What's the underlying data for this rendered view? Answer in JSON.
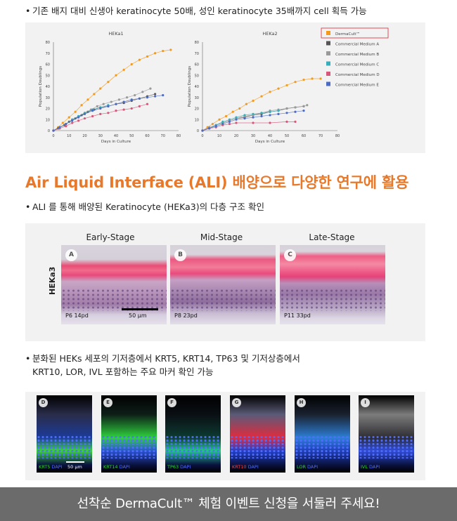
{
  "bullets": {
    "b1": "기존 배지 대비 신생아 keratinocyte 50배, 성인 keratinocyte 35배까지 cell 획득 가능",
    "b2": "ALI 를 통해 배양된 Keratinocyte (HEKa3)의 다층 구조 확인",
    "b3_line1": "분화된 HEKs 세포의 기저층에서 KRT5, KRT14, TP63 및 기저상층에서",
    "b3_line2": "KRT10, LOR, IVL 포함하는 주요 마커 확인 가능",
    "dot": "•"
  },
  "section_title": "Air Liquid Interface (ALI) 배양으로 다양한 연구에 활용",
  "colors": {
    "accent": "#e8792a",
    "legend_highlight": "#d9262f",
    "footer_bg": "#6b6b6b"
  },
  "chart_data": [
    {
      "type": "line",
      "title": "HEKa1",
      "xlabel": "Days in Culture",
      "ylabel": "Population Doublings",
      "xlim": [
        0,
        80
      ],
      "ylim": [
        0,
        80
      ],
      "xticks": [
        0,
        10,
        20,
        30,
        40,
        50,
        60,
        70,
        80
      ],
      "yticks": [
        0,
        10,
        20,
        30,
        40,
        50,
        60,
        70,
        80
      ],
      "series": [
        {
          "name": "DermaCult™",
          "color": "#f39a1c",
          "x": [
            0,
            3,
            6,
            10,
            14,
            18,
            22,
            26,
            30,
            35,
            40,
            45,
            50,
            55,
            60,
            65,
            70,
            75
          ],
          "y": [
            0,
            3,
            7,
            12,
            17,
            23,
            28,
            33,
            38,
            44,
            50,
            55,
            60,
            64,
            67,
            70,
            72,
            73
          ]
        },
        {
          "name": "Commercial Medium A",
          "color": "#555555",
          "x": [
            0,
            3,
            7,
            10,
            14,
            18,
            22,
            26,
            30,
            35,
            40,
            45,
            50,
            55,
            60,
            65
          ],
          "y": [
            0,
            2,
            5,
            8,
            11,
            14,
            17,
            19,
            21,
            22,
            24,
            25,
            27,
            29,
            31,
            33
          ]
        },
        {
          "name": "Commercial Medium B",
          "color": "#9a9a9a",
          "x": [
            0,
            4,
            8,
            12,
            16,
            20,
            24,
            28,
            32,
            37,
            42,
            47,
            52,
            57,
            62
          ],
          "y": [
            0,
            3,
            6,
            10,
            13,
            16,
            19,
            22,
            24,
            26,
            28,
            30,
            32,
            35,
            38
          ]
        },
        {
          "name": "Commercial Medium C",
          "color": "#39aeb8",
          "x": [
            0,
            4,
            8,
            12,
            16,
            20,
            25,
            30,
            35
          ],
          "y": [
            0,
            3,
            6,
            10,
            13,
            16,
            19,
            21,
            23
          ]
        },
        {
          "name": "Commercial Medium D",
          "color": "#d6577a",
          "x": [
            0,
            4,
            8,
            12,
            16,
            20,
            25,
            30,
            35,
            40,
            45,
            50,
            55,
            60
          ],
          "y": [
            0,
            2,
            4,
            7,
            9,
            11,
            13,
            15,
            16,
            18,
            19,
            20,
            22,
            24
          ]
        },
        {
          "name": "Commercial Medium E",
          "color": "#4c6bc4",
          "x": [
            0,
            4,
            8,
            12,
            16,
            20,
            25,
            30,
            35,
            40,
            45,
            50,
            55,
            60,
            65,
            70
          ],
          "y": [
            0,
            3,
            6,
            9,
            12,
            15,
            18,
            20,
            22,
            24,
            26,
            28,
            29,
            30,
            31,
            32
          ]
        }
      ]
    },
    {
      "type": "line",
      "title": "HEKa2",
      "xlabel": "Days in Culture",
      "ylabel": "Population Doublings",
      "xlim": [
        0,
        80
      ],
      "ylim": [
        0,
        80
      ],
      "xticks": [
        0,
        10,
        20,
        30,
        40,
        50,
        60,
        70,
        80
      ],
      "yticks": [
        0,
        10,
        20,
        30,
        40,
        50,
        60,
        70,
        80
      ],
      "series": [
        {
          "name": "DermaCult™",
          "color": "#f39a1c",
          "x": [
            0,
            3,
            6,
            10,
            14,
            18,
            22,
            26,
            30,
            35,
            40,
            45,
            50,
            55,
            60,
            65,
            70
          ],
          "y": [
            0,
            3,
            6,
            10,
            13,
            17,
            20,
            24,
            27,
            31,
            35,
            38,
            41,
            44,
            46,
            47,
            47
          ]
        },
        {
          "name": "Commercial Medium A",
          "color": "#555555",
          "x": [
            0,
            4,
            8,
            12,
            16,
            20,
            25,
            30,
            35,
            40,
            45,
            50,
            55,
            60
          ],
          "y": [
            0,
            2,
            5,
            7,
            9,
            11,
            12,
            14,
            15,
            17,
            18,
            20,
            21,
            22
          ]
        },
        {
          "name": "Commercial Medium B",
          "color": "#9a9a9a",
          "x": [
            0,
            4,
            8,
            12,
            16,
            20,
            25,
            30,
            35,
            40,
            45,
            50,
            55,
            60,
            62
          ],
          "y": [
            0,
            3,
            5,
            7,
            9,
            11,
            13,
            14,
            16,
            18,
            19,
            20,
            21,
            22,
            23
          ]
        },
        {
          "name": "Commercial Medium C",
          "color": "#39aeb8",
          "x": [
            0,
            4,
            8,
            12,
            16,
            20,
            25,
            30,
            35,
            40,
            45
          ],
          "y": [
            0,
            2,
            5,
            8,
            10,
            12,
            14,
            15,
            16,
            17,
            18
          ]
        },
        {
          "name": "Commercial Medium D",
          "color": "#d6577a",
          "x": [
            0,
            4,
            8,
            12,
            16,
            20,
            30,
            40,
            50,
            55
          ],
          "y": [
            0,
            2,
            3,
            5,
            6,
            7,
            7,
            7,
            8,
            8
          ]
        },
        {
          "name": "Commercial Medium E",
          "color": "#4c6bc4",
          "x": [
            0,
            4,
            8,
            12,
            16,
            20,
            25,
            30,
            35,
            40,
            45,
            50,
            55,
            60
          ],
          "y": [
            0,
            2,
            4,
            6,
            8,
            10,
            11,
            12,
            13,
            14,
            15,
            16,
            17,
            18
          ]
        }
      ]
    }
  ],
  "legend": {
    "items": [
      {
        "label": "DermaCult™",
        "color": "#f39a1c",
        "highlighted": true
      },
      {
        "label": "Commercial Medium A",
        "color": "#555555"
      },
      {
        "label": "Commercial Medium B",
        "color": "#9a9a9a"
      },
      {
        "label": "Commercial Medium C",
        "color": "#39aeb8"
      },
      {
        "label": "Commercial Medium D",
        "color": "#d6577a"
      },
      {
        "label": "Commercial Medium E",
        "color": "#4c6bc4"
      }
    ]
  },
  "ali": {
    "row_label": "HEKa3",
    "stages": [
      {
        "title": "Early-Stage",
        "badge": "A",
        "pd": "P6 14pd"
      },
      {
        "title": "Mid-Stage",
        "badge": "B",
        "pd": "P8 23pd"
      },
      {
        "title": "Late-Stage",
        "badge": "C",
        "pd": "P11 33pd"
      }
    ],
    "scale_bar": "50 μm"
  },
  "fluorescence": {
    "scale_bar": "50 μm",
    "dapi": "DAPI",
    "panels": [
      {
        "badge": "D",
        "marker": "KRT5"
      },
      {
        "badge": "E",
        "marker": "KRT14"
      },
      {
        "badge": "F",
        "marker": "TP63"
      },
      {
        "badge": "G",
        "marker": "KRT10"
      },
      {
        "badge": "H",
        "marker": "LOR"
      },
      {
        "badge": "I",
        "marker": "IVL"
      }
    ]
  },
  "footer": {
    "text": "선착순 DermaCult™ 체험 이벤트 신청을 서둘러 주세요!"
  }
}
